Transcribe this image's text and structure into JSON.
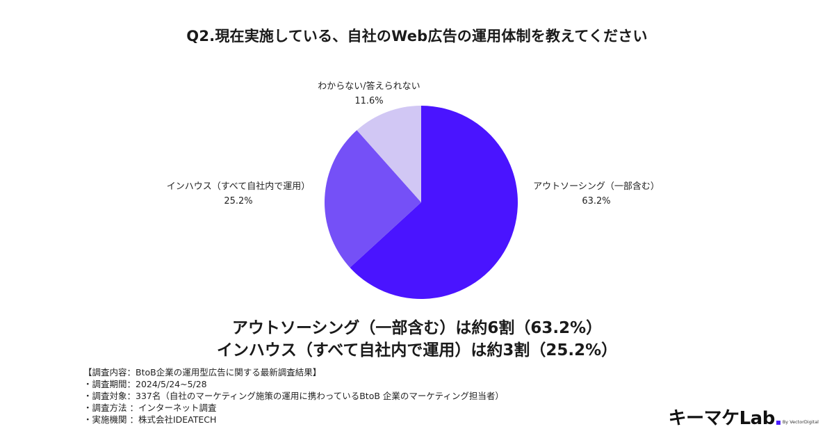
{
  "title": "Q2.現在実施している、自社のWeb広告の運用体制を教えてください",
  "chart_data": {
    "type": "pie",
    "slices": [
      {
        "label": "アウトソーシング（一部含む）",
        "value": 63.2,
        "value_label": "63.2%",
        "color": "#4a14ff"
      },
      {
        "label": "インハウス（すべて自社内で運用）",
        "value": 25.2,
        "value_label": "25.2%",
        "color": "#7550f7"
      },
      {
        "label": "わからない/答えられない",
        "value": 11.6,
        "value_label": "11.6%",
        "color": "#d1c7f4"
      }
    ]
  },
  "headline": {
    "line1": "アウトソーシング（一部含む）は約6割（63.2%）",
    "line2": "インハウス（すべて自社内で運用）は約3割（25.2%）"
  },
  "survey_notes": [
    "【調査内容：BtoB企業の運用型広告に関する最新調査結果】",
    "・調査期間：2024/5/24~5/28",
    "・調査対象：337名（自社のマーケティング施策の運用に携わっているBtoB 企業のマーケティング担当者）",
    "・調査方法 ：インターネット調査",
    "・実施機関 ：株式会社IDEATECH"
  ],
  "logo": {
    "main": "キーマケLab",
    "sub": "By VectorDigital",
    "dot_color": "#4a1dff"
  }
}
